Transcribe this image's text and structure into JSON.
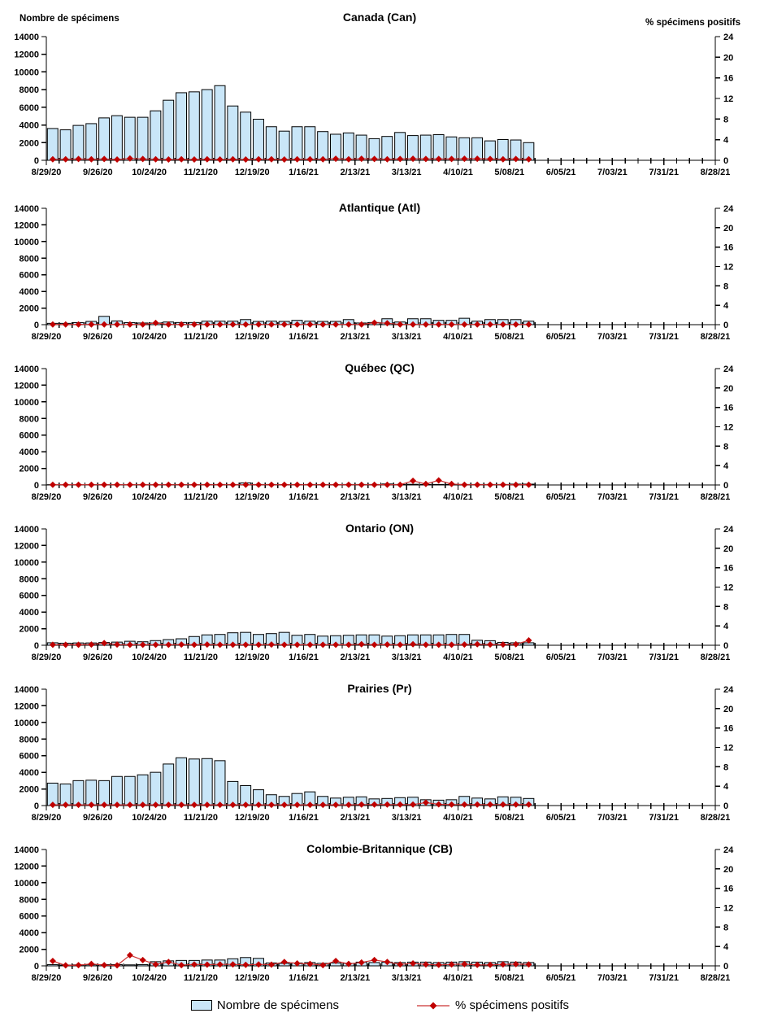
{
  "page": {
    "background": "#ffffff"
  },
  "colors": {
    "bar_fill": "#C9E6F8",
    "bar_stroke": "#000000",
    "positive_line": "#CC3333",
    "positive_marker": "#C00000",
    "axis": "#000000"
  },
  "legend": {
    "items": [
      {
        "label": "Nombre de spécimens",
        "swatch": "bar"
      },
      {
        "label": "% spécimens positifs",
        "swatch": "line-marker"
      }
    ]
  },
  "chart_data": {
    "type": "bar+line small multiples",
    "left_axis_title": "Nombre de spécimens",
    "right_axis_title": "% spécimens positifs",
    "left_ticks": [
      0,
      2000,
      4000,
      6000,
      8000,
      10000,
      12000,
      14000
    ],
    "right_ticks": [
      0,
      4,
      8,
      12,
      16,
      20,
      24
    ],
    "ylim_left": [
      0,
      14000
    ],
    "ylim_right": [
      0,
      24
    ],
    "x_tick_labels": [
      "8/29/20",
      "9/26/20",
      "10/24/20",
      "11/21/20",
      "12/19/20",
      "1/16/21",
      "2/13/21",
      "3/13/21",
      "4/10/21",
      "5/08/21",
      "6/05/21",
      "7/03/21",
      "7/31/21",
      "8/28/21"
    ],
    "weeks_total": 53,
    "categories": [
      "8/29/20",
      "9/05/20",
      "9/12/20",
      "9/19/20",
      "9/26/20",
      "10/03/20",
      "10/10/20",
      "10/17/20",
      "10/24/20",
      "10/31/20",
      "11/07/20",
      "11/14/20",
      "11/21/20",
      "11/28/20",
      "12/05/20",
      "12/12/20",
      "12/19/20",
      "12/26/20",
      "1/02/21",
      "1/09/21",
      "1/16/21",
      "1/23/21",
      "1/30/21",
      "2/06/21",
      "2/13/21",
      "2/20/21",
      "2/27/21",
      "3/06/21",
      "3/13/21",
      "3/20/21",
      "3/27/21",
      "4/03/21",
      "4/10/21",
      "4/17/21",
      "4/24/21",
      "5/01/21",
      "5/08/21",
      "5/15/21"
    ],
    "charts": [
      {
        "title": "Canada (Can)",
        "slug": "canada",
        "series": [
          {
            "name": "Nombre de spécimens",
            "type": "bar",
            "axis": "left",
            "values": [
              3600,
              3450,
              3950,
              4150,
              4800,
              5050,
              4870,
              4870,
              5600,
              6800,
              7650,
              7750,
              8000,
              8450,
              6150,
              5450,
              4650,
              3800,
              3300,
              3800,
              3800,
              3250,
              2950,
              3100,
              2850,
              2450,
              2700,
              3150,
              2800,
              2850,
              2900,
              2650,
              2550,
              2550,
              2200,
              2350,
              2300,
              2000
            ]
          },
          {
            "name": "% spécimens positifs",
            "type": "line",
            "axis": "right",
            "values": [
              0.2,
              0.2,
              0.25,
              0.2,
              0.25,
              0.15,
              0.35,
              0.25,
              0.2,
              0.15,
              0.2,
              0.15,
              0.2,
              0.15,
              0.2,
              0.15,
              0.2,
              0.2,
              0.15,
              0.2,
              0.2,
              0.2,
              0.3,
              0.2,
              0.3,
              0.25,
              0.2,
              0.25,
              0.3,
              0.25,
              0.25,
              0.25,
              0.3,
              0.3,
              0.25,
              0.2,
              0.25,
              0.2
            ]
          }
        ]
      },
      {
        "title": "Atlantique (Atl)",
        "slug": "atlantique",
        "series": [
          {
            "name": "Nombre de spécimens",
            "type": "bar",
            "axis": "left",
            "values": [
              160,
              160,
              250,
              390,
              1000,
              450,
              250,
              200,
              200,
              320,
              260,
              260,
              420,
              420,
              420,
              610,
              390,
              420,
              390,
              520,
              420,
              390,
              390,
              610,
              200,
              260,
              710,
              320,
              710,
              710,
              520,
              520,
              770,
              420,
              610,
              610,
              610,
              420
            ]
          },
          {
            "name": "% spécimens positifs",
            "type": "line",
            "axis": "right",
            "values": [
              0.05,
              0.05,
              0.05,
              0.05,
              0.05,
              0.05,
              0.05,
              0.05,
              0.35,
              0.05,
              0.05,
              0.05,
              0.05,
              0.05,
              0.05,
              0.05,
              0.05,
              0.05,
              0.05,
              0.05,
              0.05,
              0.05,
              0.05,
              0.05,
              0.05,
              0.4,
              0.3,
              0.05,
              0.05,
              0.05,
              0.05,
              0.05,
              0.05,
              0.05,
              0.05,
              0.05,
              0.05,
              0.05
            ]
          }
        ]
      },
      {
        "title": "Québec (QC)",
        "slug": "quebec",
        "series": [
          {
            "name": "Nombre de spécimens",
            "type": "bar",
            "axis": "left",
            "values": [
              30,
              30,
              30,
              40,
              50,
              40,
              40,
              40,
              40,
              50,
              50,
              50,
              60,
              60,
              50,
              250,
              60,
              60,
              50,
              60,
              60,
              50,
              50,
              60,
              60,
              60,
              120,
              60,
              80,
              60,
              60,
              60,
              60,
              60,
              60,
              60,
              100,
              100
            ]
          },
          {
            "name": "% spécimens positifs",
            "type": "line",
            "axis": "right",
            "values": [
              0.05,
              0.05,
              0.05,
              0.05,
              0.05,
              0.05,
              0.05,
              0.05,
              0.05,
              0.05,
              0.05,
              0.05,
              0.05,
              0.05,
              0.05,
              0.05,
              0.05,
              0.05,
              0.05,
              0.05,
              0.05,
              0.05,
              0.05,
              0.05,
              0.05,
              0.05,
              0.05,
              0.05,
              0.85,
              0.2,
              0.95,
              0.2,
              0.05,
              0.05,
              0.05,
              0.05,
              0.05,
              0.05
            ]
          }
        ]
      },
      {
        "title": "Ontario (ON)",
        "slug": "ontario",
        "series": [
          {
            "name": "Nombre de spécimens",
            "type": "bar",
            "axis": "left",
            "values": [
              300,
              250,
              280,
              280,
              330,
              380,
              480,
              420,
              560,
              680,
              780,
              1050,
              1250,
              1300,
              1500,
              1550,
              1300,
              1400,
              1550,
              1200,
              1300,
              1100,
              1150,
              1200,
              1250,
              1250,
              1100,
              1150,
              1250,
              1250,
              1250,
              1300,
              1300,
              600,
              550,
              350,
              300,
              300
            ]
          },
          {
            "name": "% spécimens positifs",
            "type": "line",
            "axis": "right",
            "values": [
              0.1,
              0.1,
              0.1,
              0.15,
              0.45,
              0.15,
              0.1,
              0.1,
              0.1,
              0.1,
              0.15,
              0.1,
              0.15,
              0.1,
              0.1,
              0.1,
              0.1,
              0.15,
              0.1,
              0.1,
              0.1,
              0.1,
              0.1,
              0.1,
              0.2,
              0.1,
              0.15,
              0.1,
              0.2,
              0.1,
              0.1,
              0.1,
              0.15,
              0.2,
              0.15,
              0.15,
              0.2,
              1.0
            ]
          }
        ]
      },
      {
        "title": "Prairies (Pr)",
        "slug": "prairies",
        "series": [
          {
            "name": "Nombre de spécimens",
            "type": "bar",
            "axis": "left",
            "values": [
              2700,
              2600,
              3000,
              3050,
              3000,
              3500,
              3500,
              3700,
              4000,
              5000,
              5750,
              5600,
              5650,
              5400,
              2900,
              2400,
              1900,
              1300,
              1100,
              1450,
              1650,
              1100,
              900,
              1000,
              1050,
              800,
              850,
              950,
              1000,
              700,
              650,
              700,
              1100,
              900,
              800,
              1050,
              1000,
              850
            ]
          },
          {
            "name": "% spécimens positifs",
            "type": "line",
            "axis": "right",
            "values": [
              0.15,
              0.15,
              0.15,
              0.15,
              0.15,
              0.15,
              0.15,
              0.15,
              0.15,
              0.15,
              0.15,
              0.15,
              0.15,
              0.15,
              0.15,
              0.15,
              0.15,
              0.15,
              0.15,
              0.15,
              0.15,
              0.15,
              0.15,
              0.15,
              0.2,
              0.2,
              0.2,
              0.2,
              0.2,
              0.6,
              0.25,
              0.2,
              0.2,
              0.2,
              0.2,
              0.2,
              0.2,
              0.2
            ]
          }
        ]
      },
      {
        "title": "Colombie-Britannique (CB)",
        "slug": "colombie-britannique",
        "series": [
          {
            "name": "Nombre de spécimens",
            "type": "bar",
            "axis": "left",
            "values": [
              150,
              100,
              120,
              130,
              150,
              150,
              120,
              150,
              500,
              600,
              650,
              650,
              700,
              700,
              850,
              1000,
              900,
              350,
              300,
              350,
              400,
              300,
              350,
              300,
              450,
              400,
              450,
              400,
              450,
              450,
              400,
              450,
              500,
              450,
              400,
              500,
              450,
              400
            ]
          },
          {
            "name": "% spécimens positifs",
            "type": "line",
            "axis": "right",
            "values": [
              1.0,
              0.1,
              0.15,
              0.4,
              0.15,
              0.1,
              2.2,
              1.2,
              0.3,
              0.8,
              0.15,
              0.3,
              0.25,
              0.3,
              0.3,
              0.2,
              0.3,
              0.25,
              0.8,
              0.5,
              0.4,
              0.15,
              1.0,
              0.4,
              0.7,
              1.2,
              0.8,
              0.3,
              0.5,
              0.3,
              0.2,
              0.3,
              0.35,
              0.2,
              0.2,
              0.3,
              0.35,
              0.3
            ]
          }
        ]
      }
    ]
  }
}
